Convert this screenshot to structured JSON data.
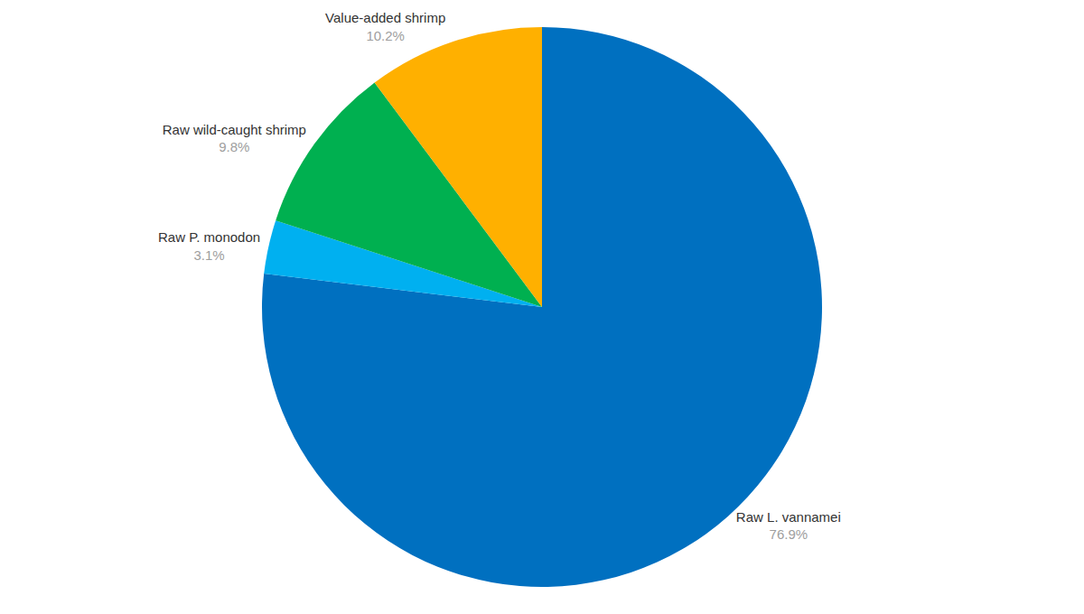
{
  "chart_data": {
    "type": "pie",
    "categories": [
      "Raw L. vannamei",
      "Raw P. monodon",
      "Raw wild-caught shrimp",
      "Value-added shrimp"
    ],
    "values": [
      76.9,
      3.1,
      9.8,
      10.2
    ],
    "value_labels": [
      "76.9%",
      "3.1%",
      "9.8%",
      "10.2%"
    ],
    "colors": [
      "#0070c0",
      "#00b0f0",
      "#00b050",
      "#ffb000"
    ],
    "data_labels": true
  }
}
